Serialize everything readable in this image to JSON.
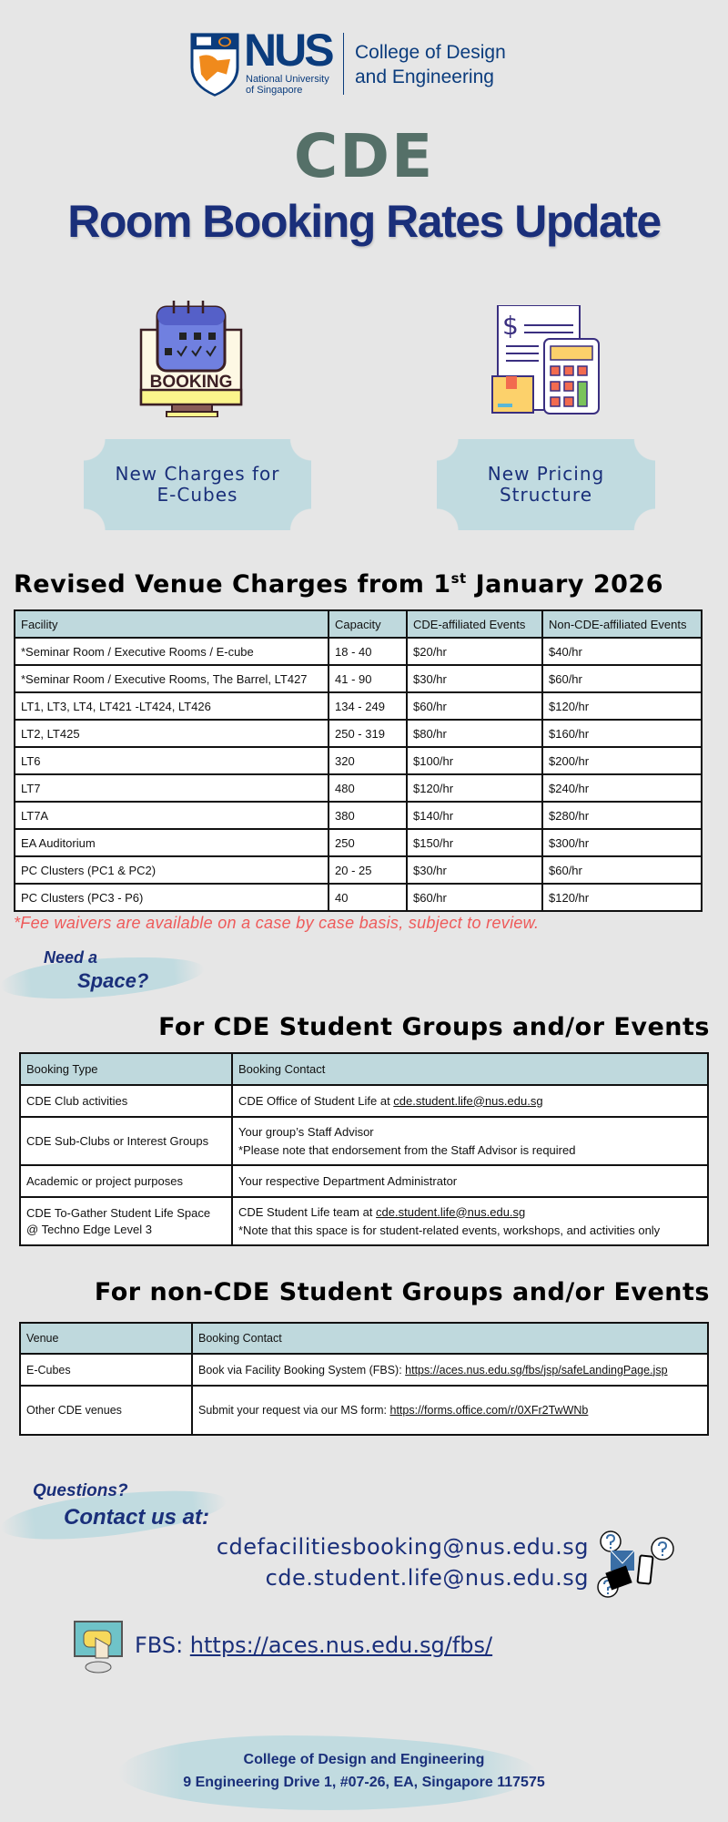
{
  "header": {
    "logo_text": "NUS",
    "logo_sub": "National University of Singapore",
    "college": [
      "College of Design",
      "and Engineering"
    ],
    "acronym": "CDE",
    "title": "Room Booking Rates Update"
  },
  "highlights": [
    {
      "icon": "booking-calendar-icon",
      "label_lines": [
        "New Charges for",
        "E-Cubes"
      ]
    },
    {
      "icon": "pricing-calculator-icon",
      "label_lines": [
        "New Pricing",
        "Structure"
      ]
    }
  ],
  "venue_charges": {
    "heading": "Revised Venue Charges from 1",
    "heading_sup": "st",
    "heading_end": " January 2026",
    "columns": [
      "Facility",
      "Capacity",
      "CDE-affiliated Events",
      "Non-CDE-affiliated Events"
    ],
    "rows": [
      [
        "*Seminar Room / Executive Rooms / E-cube",
        "18 - 40",
        "$20/hr",
        "$40/hr"
      ],
      [
        "*Seminar Room / Executive Rooms, The Barrel, LT427",
        "41 - 90",
        "$30/hr",
        "$60/hr"
      ],
      [
        "LT1, LT3, LT4, LT421 -LT424, LT426",
        "134 - 249",
        "$60/hr",
        "$120/hr"
      ],
      [
        "LT2, LT425",
        "250 - 319",
        "$80/hr",
        "$160/hr"
      ],
      [
        "LT6",
        "320",
        "$100/hr",
        "$200/hr"
      ],
      [
        "LT7",
        "480",
        "$120/hr",
        "$240/hr"
      ],
      [
        "LT7A",
        "380",
        "$140/hr",
        "$280/hr"
      ],
      [
        "EA Auditorium",
        "250",
        "$150/hr",
        "$300/hr"
      ],
      [
        "PC Clusters (PC1 & PC2)",
        "20 - 25",
        "$30/hr",
        "$60/hr"
      ],
      [
        "PC Clusters (PC3 - P6)",
        "40",
        "$60/hr",
        "$120/hr"
      ]
    ],
    "note": "*Fee waivers are available on a case by case basis, subject to review."
  },
  "need_space": [
    "Need a",
    "Space?"
  ],
  "cde_groups": {
    "heading": "For CDE Student Groups and/or Events",
    "columns": [
      "Booking Type",
      "Booking Contact"
    ],
    "rows": [
      {
        "type": [
          "CDE Club activities"
        ],
        "contact": "CDE Office of Student Life at ",
        "link": "cde.student.life@nus.edu.sg",
        "note": ""
      },
      {
        "type": [
          "CDE Sub-Clubs or Interest Groups"
        ],
        "contact": "Your group’s Staff Advisor",
        "link": "",
        "note": "*Please note that endorsement from the Staff Advisor is required"
      },
      {
        "type": [
          "Academic or project purposes"
        ],
        "contact": "Your respective Department Administrator",
        "link": "",
        "note": ""
      },
      {
        "type": [
          "CDE To-Gather Student Life Space",
          "@ Techno Edge Level 3"
        ],
        "contact": "CDE Student Life team at ",
        "link": "cde.student.life@nus.edu.sg",
        "note": "*Note that this space is for student-related events, workshops, and activities only"
      }
    ]
  },
  "non_cde_groups": {
    "heading": "For non-CDE Student Groups and/or Events",
    "columns": [
      "Venue",
      "Booking Contact"
    ],
    "rows": [
      {
        "venue": "E-Cubes",
        "contact": "Book via Facility Booking System (FBS): ",
        "link": "https://aces.nus.edu.sg/fbs/jsp/safeLandingPage.jsp"
      },
      {
        "venue": "Other CDE venues",
        "contact": "Submit your request via our MS form: ",
        "link": "https://forms.office.com/r/0XFr2TwWNb"
      }
    ]
  },
  "contact": {
    "questions": "Questions?",
    "contact_us": "Contact us at:",
    "emails": [
      "cdefacilitiesbooking@nus.edu.sg",
      "cde.student.life@nus.edu.sg"
    ],
    "fbs_label": "FBS: ",
    "fbs_link": "https://aces.nus.edu.sg/fbs/"
  },
  "footer": {
    "name": "College of Design and Engineering",
    "address": "9 Engineering Drive 1, #07-26, EA, Singapore 117575"
  },
  "colors": {
    "navy": "#1a2f7a",
    "cde_green": "#557068",
    "table_header": "#bfd9dd",
    "note_red": "#ee5a5a",
    "background": "#e6e6e6"
  }
}
